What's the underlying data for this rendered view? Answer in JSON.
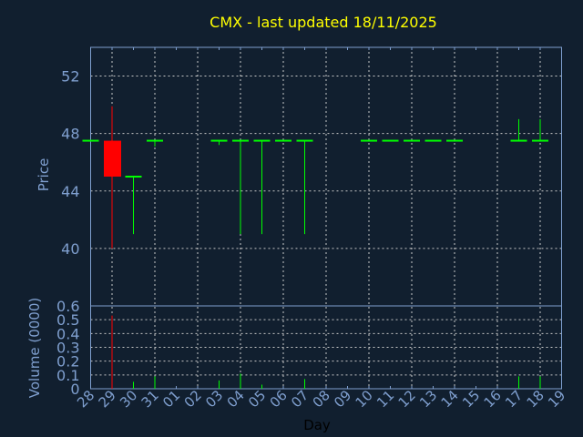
{
  "colors": {
    "background": "#111f2f",
    "axis": "#7f9fcf",
    "grid": "#c8c8c8",
    "title": "#ffff00",
    "up": "#00ff00",
    "down": "#ff0000",
    "xlabel": "#000000"
  },
  "chart_data": [
    {
      "type": "candlestick",
      "title": "CMX - last updated 18/11/2025",
      "ylabel": "Price",
      "xlabel": "Day",
      "ylim": [
        36,
        54
      ],
      "yticks": [
        40,
        44,
        48,
        52
      ],
      "grid": true,
      "x_tick_labels": [
        "28",
        "29",
        "30",
        "31",
        "01",
        "02",
        "03",
        "04",
        "05",
        "06",
        "07",
        "08",
        "09",
        "10",
        "11",
        "12",
        "13",
        "14",
        "15",
        "16",
        "17",
        "18",
        "19"
      ],
      "candles": [
        {
          "day": "28",
          "open": 47.5,
          "high": 47.5,
          "low": 47.5,
          "close": 47.5
        },
        {
          "day": "29",
          "open": 47.5,
          "high": 49.9,
          "low": 40.0,
          "close": 45.0
        },
        {
          "day": "30",
          "open": 45.0,
          "high": 45.0,
          "low": 41.0,
          "close": 45.0
        },
        {
          "day": "31",
          "open": 47.5,
          "high": 47.5,
          "low": 47.1,
          "close": 47.5
        },
        {
          "day": "03",
          "open": 47.5,
          "high": 47.5,
          "low": 47.2,
          "close": 47.5
        },
        {
          "day": "04",
          "open": 47.5,
          "high": 47.5,
          "low": 41.0,
          "close": 47.5
        },
        {
          "day": "05",
          "open": 47.5,
          "high": 47.5,
          "low": 41.0,
          "close": 47.5
        },
        {
          "day": "06",
          "open": 47.5,
          "high": 47.5,
          "low": 47.5,
          "close": 47.5
        },
        {
          "day": "07",
          "open": 47.5,
          "high": 47.5,
          "low": 41.0,
          "close": 47.5
        },
        {
          "day": "10",
          "open": 47.5,
          "high": 47.5,
          "low": 47.5,
          "close": 47.5
        },
        {
          "day": "11",
          "open": 47.5,
          "high": 47.5,
          "low": 47.5,
          "close": 47.5
        },
        {
          "day": "12",
          "open": 47.5,
          "high": 47.5,
          "low": 47.5,
          "close": 47.5
        },
        {
          "day": "13",
          "open": 47.5,
          "high": 47.5,
          "low": 47.5,
          "close": 47.5
        },
        {
          "day": "14",
          "open": 47.5,
          "high": 47.5,
          "low": 47.5,
          "close": 47.5
        },
        {
          "day": "17",
          "open": 47.5,
          "high": 49.0,
          "low": 47.5,
          "close": 47.5
        },
        {
          "day": "18",
          "open": 47.5,
          "high": 49.0,
          "low": 47.5,
          "close": 47.5
        }
      ]
    },
    {
      "type": "bar",
      "ylabel": "Volume (0000)",
      "ylim": [
        0,
        0.6
      ],
      "yticks": [
        0,
        0.1,
        0.2,
        0.3,
        0.4,
        0.5,
        0.6
      ],
      "yticklabels": [
        "0",
        "0.1",
        "0.2",
        "0.3",
        "0.4",
        "0.5",
        "0.6"
      ],
      "grid": true,
      "bars": [
        {
          "day": "29",
          "value": 0.53,
          "direction": "down"
        },
        {
          "day": "30",
          "value": 0.05,
          "direction": "up"
        },
        {
          "day": "31",
          "value": 0.09,
          "direction": "up"
        },
        {
          "day": "03",
          "value": 0.06,
          "direction": "up"
        },
        {
          "day": "04",
          "value": 0.11,
          "direction": "up"
        },
        {
          "day": "05",
          "value": 0.03,
          "direction": "up"
        },
        {
          "day": "07",
          "value": 0.07,
          "direction": "up"
        },
        {
          "day": "17",
          "value": 0.09,
          "direction": "up"
        },
        {
          "day": "18",
          "value": 0.09,
          "direction": "up"
        }
      ]
    }
  ]
}
